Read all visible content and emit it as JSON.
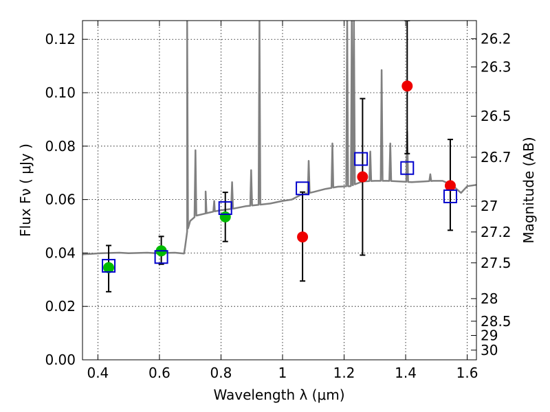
{
  "chart_data": {
    "type": "scatter",
    "xlabel": "Wavelength  λ (μm)",
    "ylabel": "Flux  Fν  ( μJy )",
    "ylabel_right": "Magnitude (AB)",
    "xlim": [
      0.35,
      1.63
    ],
    "ylim": [
      0.0,
      0.127
    ],
    "x_ticks": [
      0.4,
      0.6,
      0.8,
      1.0,
      1.2,
      1.4,
      1.6
    ],
    "x_tick_labels": [
      "0.4",
      "0.6",
      "0.8",
      "1",
      "1.2",
      "1.4",
      "1.6"
    ],
    "y_ticks": [
      0.0,
      0.02,
      0.04,
      0.06,
      0.08,
      0.1,
      0.12
    ],
    "y_tick_labels": [
      "0.00",
      "0.02",
      "0.04",
      "0.06",
      "0.08",
      "0.10",
      "0.12"
    ],
    "mag_ticks": [
      26.2,
      26.3,
      26.5,
      26.7,
      27,
      27.2,
      27.5,
      28,
      28.5,
      29,
      30
    ],
    "mag_tick_labels": [
      "26.2",
      "26.3",
      "26.5",
      "26.7",
      "27",
      "27.2",
      "27.5",
      "28",
      "28.5",
      "29",
      "30"
    ],
    "grid": true,
    "colors": {
      "spectrum": "#808080",
      "model_square": "#0000cc",
      "green_point": "#00bb00",
      "red_point": "#ee0000",
      "errorbar": "#000000"
    },
    "series": [
      {
        "marker": "circle-green",
        "points": [
          {
            "x": 0.435,
            "y": 0.0345,
            "yerr_low": 0.0255,
            "yerr_high": 0.0428
          },
          {
            "x": 0.606,
            "y": 0.0408,
            "yerr_low": 0.0358,
            "yerr_high": 0.0462
          },
          {
            "x": 0.814,
            "y": 0.0535,
            "yerr_low": 0.0443,
            "yerr_high": 0.0627
          }
        ]
      },
      {
        "marker": "circle-red",
        "points": [
          {
            "x": 1.065,
            "y": 0.046,
            "yerr_low": 0.0295,
            "yerr_high": 0.0628
          },
          {
            "x": 1.26,
            "y": 0.0685,
            "yerr_low": 0.0392,
            "yerr_high": 0.0978
          },
          {
            "x": 1.405,
            "y": 0.1025,
            "yerr_low": 0.0772,
            "yerr_high": 0.127
          },
          {
            "x": 1.545,
            "y": 0.0652,
            "yerr_low": 0.0485,
            "yerr_high": 0.0825
          }
        ]
      },
      {
        "marker": "square-blue",
        "points": [
          {
            "x": 0.435,
            "y": 0.0352
          },
          {
            "x": 0.606,
            "y": 0.0385
          },
          {
            "x": 0.814,
            "y": 0.0568
          },
          {
            "x": 1.065,
            "y": 0.0642
          },
          {
            "x": 1.255,
            "y": 0.0752
          },
          {
            "x": 1.405,
            "y": 0.0718
          },
          {
            "x": 1.545,
            "y": 0.0612
          }
        ]
      },
      {
        "marker": "line-gray",
        "points": [
          [
            0.35,
            0.0395
          ],
          [
            0.38,
            0.0397
          ],
          [
            0.41,
            0.0399
          ],
          [
            0.44,
            0.04
          ],
          [
            0.47,
            0.0401
          ],
          [
            0.5,
            0.0399
          ],
          [
            0.53,
            0.04
          ],
          [
            0.56,
            0.0401
          ],
          [
            0.59,
            0.0399
          ],
          [
            0.62,
            0.04
          ],
          [
            0.65,
            0.0401
          ],
          [
            0.68,
            0.0398
          ],
          [
            0.683,
            0.042
          ],
          [
            0.69,
            0.048
          ],
          [
            0.7,
            0.052
          ],
          [
            0.72,
            0.054
          ],
          [
            0.75,
            0.0548
          ],
          [
            0.78,
            0.0556
          ],
          [
            0.8,
            0.056
          ],
          [
            0.84,
            0.0566
          ],
          [
            0.88,
            0.0575
          ],
          [
            0.92,
            0.058
          ],
          [
            0.96,
            0.0585
          ],
          [
            1.0,
            0.0595
          ],
          [
            1.03,
            0.06
          ],
          [
            1.06,
            0.0618
          ],
          [
            1.1,
            0.0628
          ],
          [
            1.14,
            0.064
          ],
          [
            1.18,
            0.0648
          ],
          [
            1.22,
            0.065
          ],
          [
            1.26,
            0.0668
          ],
          [
            1.3,
            0.067
          ],
          [
            1.34,
            0.067
          ],
          [
            1.38,
            0.0668
          ],
          [
            1.42,
            0.0665
          ],
          [
            1.46,
            0.0668
          ],
          [
            1.49,
            0.067
          ],
          [
            1.52,
            0.067
          ],
          [
            1.55,
            0.0655
          ],
          [
            1.58,
            0.0625
          ],
          [
            1.6,
            0.065
          ],
          [
            1.63,
            0.0655
          ]
        ],
        "emission_lines": [
          {
            "x": 0.69,
            "peak": 0.127
          },
          {
            "x": 0.717,
            "peak": 0.0785
          },
          {
            "x": 0.75,
            "peak": 0.063
          },
          {
            "x": 0.778,
            "peak": 0.0595
          },
          {
            "x": 0.836,
            "peak": 0.0665
          },
          {
            "x": 0.898,
            "peak": 0.071
          },
          {
            "x": 0.925,
            "peak": 0.127
          },
          {
            "x": 1.085,
            "peak": 0.0745
          },
          {
            "x": 1.162,
            "peak": 0.081
          },
          {
            "x": 1.21,
            "peak": 0.127
          },
          {
            "x": 1.225,
            "peak": 0.127
          },
          {
            "x": 1.232,
            "peak": 0.127
          },
          {
            "x": 1.285,
            "peak": 0.078
          },
          {
            "x": 1.322,
            "peak": 0.1085
          },
          {
            "x": 1.35,
            "peak": 0.081
          },
          {
            "x": 1.405,
            "peak": 0.0855
          },
          {
            "x": 1.48,
            "peak": 0.0695
          }
        ]
      }
    ]
  }
}
